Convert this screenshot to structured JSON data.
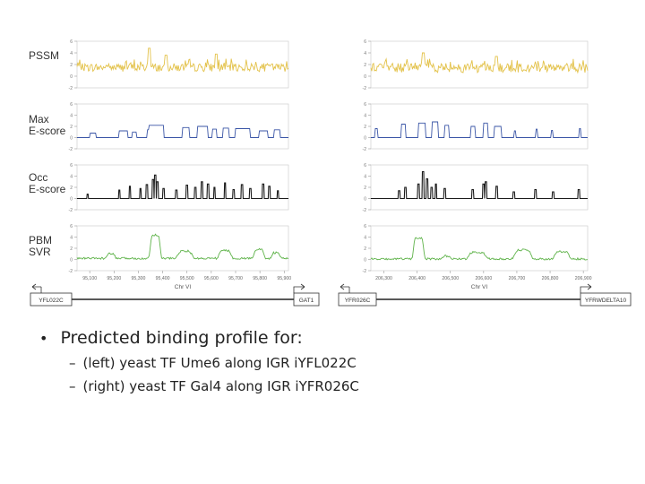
{
  "chart_data": [
    {
      "type": "line",
      "panel": "left",
      "xlabel": "Chr VI",
      "x_ticks": [
        "95,100",
        "95,200",
        "95,300",
        "95,400",
        "95,500",
        "95,600",
        "95,700",
        "95,800",
        "95,900"
      ],
      "ylim": [
        -2,
        6
      ],
      "y_ticks": [
        "6",
        "4",
        "2",
        "0",
        "-2"
      ],
      "series": [
        {
          "name": "PSSM",
          "color": "#e3c24a",
          "kind": "noise",
          "level": [
            1.2,
            2.6
          ],
          "peaks": [
            [
              0.34,
              4.8
            ],
            [
              0.42,
              3.6
            ],
            [
              0.66,
              3.8
            ]
          ]
        },
        {
          "name": "Max E-score",
          "color": "#3a55a6",
          "kind": "steps",
          "base": 0,
          "blocks": [
            [
              0.06,
              0.09,
              0.8
            ],
            [
              0.2,
              0.24,
              1.2
            ],
            [
              0.26,
              0.28,
              1.0
            ],
            [
              0.33,
              0.35,
              1.4
            ],
            [
              0.34,
              0.41,
              2.2
            ],
            [
              0.5,
              0.53,
              1.8
            ],
            [
              0.57,
              0.62,
              2.0
            ],
            [
              0.64,
              0.66,
              1.5
            ],
            [
              0.69,
              0.72,
              1.7
            ],
            [
              0.75,
              0.82,
              1.6
            ],
            [
              0.86,
              0.9,
              1.2
            ],
            [
              0.93,
              0.96,
              1.4
            ]
          ]
        },
        {
          "name": "Occ E-score",
          "color": "#1a1a1a",
          "kind": "spikes",
          "base": 0,
          "spikes": [
            [
              0.05,
              0.8
            ],
            [
              0.2,
              1.5
            ],
            [
              0.25,
              2.2
            ],
            [
              0.3,
              1.8
            ],
            [
              0.33,
              2.5
            ],
            [
              0.36,
              3.4
            ],
            [
              0.37,
              4.2
            ],
            [
              0.38,
              3.0
            ],
            [
              0.41,
              1.8
            ],
            [
              0.47,
              1.5
            ],
            [
              0.52,
              2.4
            ],
            [
              0.56,
              2.0
            ],
            [
              0.59,
              3.0
            ],
            [
              0.62,
              2.6
            ],
            [
              0.65,
              2.0
            ],
            [
              0.7,
              2.8
            ],
            [
              0.74,
              1.6
            ],
            [
              0.78,
              2.5
            ],
            [
              0.82,
              1.8
            ],
            [
              0.88,
              2.6
            ],
            [
              0.91,
              2.2
            ],
            [
              0.95,
              1.4
            ]
          ]
        },
        {
          "name": "PBM SVR",
          "color": "#5fb34a",
          "kind": "smooth",
          "base": 0.2,
          "bumps": [
            [
              0.37,
              0.025,
              4.2
            ],
            [
              0.51,
              0.035,
              1.3
            ],
            [
              0.16,
              0.02,
              0.8
            ],
            [
              0.7,
              0.03,
              1.4
            ],
            [
              0.86,
              0.025,
              1.6
            ],
            [
              0.94,
              0.02,
              1.0
            ]
          ]
        }
      ],
      "tracks": {
        "left_gene": "YFL022C",
        "right_gene": "GAT1"
      }
    },
    {
      "type": "line",
      "panel": "right",
      "xlabel": "Chr VI",
      "x_ticks": [
        "206,300",
        "206,400",
        "206,500",
        "206,600",
        "206,700",
        "206,800",
        "206,900"
      ],
      "ylim": [
        -2,
        6
      ],
      "y_ticks": [
        "6",
        "4",
        "2",
        "0",
        "-2"
      ],
      "series": [
        {
          "name": "PSSM",
          "color": "#e3c24a",
          "kind": "noise",
          "level": [
            1.0,
            2.6
          ],
          "peaks": [
            [
              0.24,
              4.0
            ],
            [
              0.58,
              3.4
            ]
          ]
        },
        {
          "name": "Max E-score",
          "color": "#3a55a6",
          "kind": "steps",
          "base": 0,
          "blocks": [
            [
              0.02,
              0.03,
              1.6
            ],
            [
              0.14,
              0.16,
              2.4
            ],
            [
              0.22,
              0.25,
              2.6
            ],
            [
              0.28,
              0.31,
              2.8
            ],
            [
              0.34,
              0.36,
              2.2
            ],
            [
              0.46,
              0.48,
              2.0
            ],
            [
              0.52,
              0.54,
              2.6
            ],
            [
              0.57,
              0.6,
              2.0
            ],
            [
              0.66,
              0.67,
              1.2
            ],
            [
              0.76,
              0.77,
              1.5
            ],
            [
              0.83,
              0.84,
              1.3
            ],
            [
              0.96,
              0.97,
              1.6
            ]
          ]
        },
        {
          "name": "Occ E-score",
          "color": "#1a1a1a",
          "kind": "spikes",
          "base": 0,
          "spikes": [
            [
              0.13,
              1.4
            ],
            [
              0.16,
              2.0
            ],
            [
              0.22,
              2.6
            ],
            [
              0.24,
              4.8
            ],
            [
              0.26,
              3.5
            ],
            [
              0.28,
              2.0
            ],
            [
              0.3,
              2.6
            ],
            [
              0.34,
              1.8
            ],
            [
              0.47,
              1.6
            ],
            [
              0.52,
              2.6
            ],
            [
              0.53,
              3.0
            ],
            [
              0.58,
              2.2
            ],
            [
              0.66,
              1.2
            ],
            [
              0.76,
              1.6
            ],
            [
              0.84,
              1.2
            ],
            [
              0.96,
              1.6
            ]
          ]
        },
        {
          "name": "PBM SVR",
          "color": "#5fb34a",
          "kind": "smooth",
          "base": 0.1,
          "bumps": [
            [
              0.22,
              0.025,
              3.8
            ],
            [
              0.49,
              0.04,
              1.2
            ],
            [
              0.7,
              0.04,
              1.6
            ],
            [
              0.88,
              0.035,
              1.3
            ],
            [
              0.35,
              0.02,
              0.5
            ]
          ]
        }
      ],
      "tracks": {
        "left_gene": "YFR026C",
        "right_gene": "YFRWDELTA10"
      }
    }
  ],
  "row_labels": [
    "PSSM",
    "Max\nE-score",
    "Occ\nE-score",
    "PBM\nSVR"
  ],
  "bullets": {
    "main": "Predicted binding profile for:",
    "sub": [
      "(left) yeast TF Ume6 along IGR iYFL022C",
      "(right) yeast TF Gal4 along IGR iYFR026C"
    ]
  }
}
